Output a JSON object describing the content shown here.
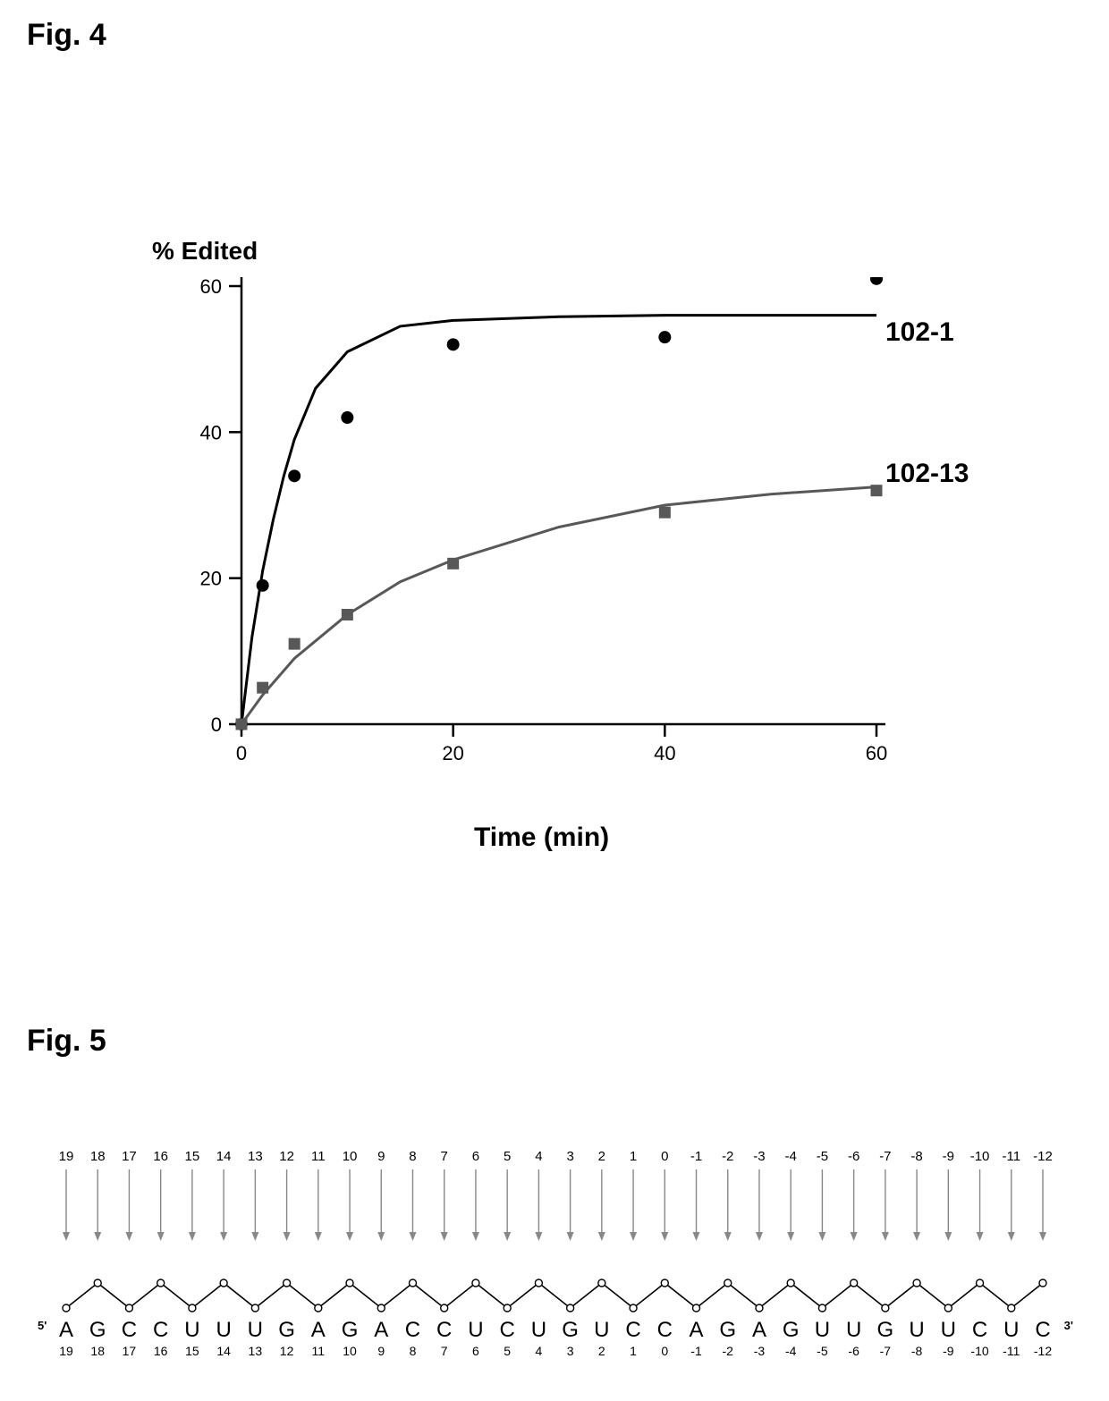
{
  "fig4": {
    "label": "Fig. 4",
    "chart": {
      "type": "line_scatter",
      "ylabel": "% Edited",
      "xlabel": "Time (min)",
      "xlim": [
        0,
        60
      ],
      "ylim": [
        0,
        60
      ],
      "xticks": [
        0,
        20,
        40,
        60
      ],
      "yticks": [
        0,
        20,
        40,
        60
      ],
      "tick_fontsize": 22,
      "label_fontsize": 29,
      "axis_color": "#000000",
      "axis_width": 2.5,
      "background": "#ffffff",
      "series": [
        {
          "name": "102-1",
          "label": "102-1",
          "marker": "circle",
          "marker_size": 14,
          "color": "#000000",
          "line_width": 3,
          "points": [
            {
              "x": 0,
              "y": 0
            },
            {
              "x": 2,
              "y": 19
            },
            {
              "x": 5,
              "y": 34
            },
            {
              "x": 10,
              "y": 42
            },
            {
              "x": 20,
              "y": 52
            },
            {
              "x": 40,
              "y": 53
            },
            {
              "x": 60,
              "y": 61
            }
          ],
          "fit_curve": [
            {
              "x": 0,
              "y": 0
            },
            {
              "x": 1,
              "y": 12
            },
            {
              "x": 2,
              "y": 21
            },
            {
              "x": 3,
              "y": 28
            },
            {
              "x": 4,
              "y": 34
            },
            {
              "x": 5,
              "y": 39
            },
            {
              "x": 7,
              "y": 46
            },
            {
              "x": 10,
              "y": 51
            },
            {
              "x": 15,
              "y": 54.5
            },
            {
              "x": 20,
              "y": 55.3
            },
            {
              "x": 30,
              "y": 55.8
            },
            {
              "x": 40,
              "y": 56
            },
            {
              "x": 50,
              "y": 56
            },
            {
              "x": 60,
              "y": 56
            }
          ]
        },
        {
          "name": "102-13",
          "label": "102-13",
          "marker": "square",
          "marker_size": 13,
          "color": "#585858",
          "line_width": 3,
          "points": [
            {
              "x": 0,
              "y": 0
            },
            {
              "x": 2,
              "y": 5
            },
            {
              "x": 5,
              "y": 11
            },
            {
              "x": 10,
              "y": 15
            },
            {
              "x": 20,
              "y": 22
            },
            {
              "x": 40,
              "y": 29
            },
            {
              "x": 60,
              "y": 32
            }
          ],
          "fit_curve": [
            {
              "x": 0,
              "y": 0
            },
            {
              "x": 2,
              "y": 4
            },
            {
              "x": 5,
              "y": 9
            },
            {
              "x": 10,
              "y": 15
            },
            {
              "x": 15,
              "y": 19.5
            },
            {
              "x": 20,
              "y": 22.5
            },
            {
              "x": 30,
              "y": 27
            },
            {
              "x": 40,
              "y": 30
            },
            {
              "x": 50,
              "y": 31.5
            },
            {
              "x": 60,
              "y": 32.5
            }
          ]
        }
      ]
    }
  },
  "fig5": {
    "label": "Fig. 5",
    "sequence": {
      "five_prime": "5'",
      "three_prime": "3'",
      "backbone_color": "#000000",
      "node_fill": "#ffffff",
      "node_stroke": "#000000",
      "arrow_color": "#888888",
      "positions": [
        {
          "idx": 19,
          "letter": "A"
        },
        {
          "idx": 18,
          "letter": "G"
        },
        {
          "idx": 17,
          "letter": "C"
        },
        {
          "idx": 16,
          "letter": "C"
        },
        {
          "idx": 15,
          "letter": "U"
        },
        {
          "idx": 14,
          "letter": "U"
        },
        {
          "idx": 13,
          "letter": "U"
        },
        {
          "idx": 12,
          "letter": "G"
        },
        {
          "idx": 11,
          "letter": "A"
        },
        {
          "idx": 10,
          "letter": "G"
        },
        {
          "idx": 9,
          "letter": "A"
        },
        {
          "idx": 8,
          "letter": "C"
        },
        {
          "idx": 7,
          "letter": "C"
        },
        {
          "idx": 6,
          "letter": "U"
        },
        {
          "idx": 5,
          "letter": "C"
        },
        {
          "idx": 4,
          "letter": "U"
        },
        {
          "idx": 3,
          "letter": "G"
        },
        {
          "idx": 2,
          "letter": "U"
        },
        {
          "idx": 1,
          "letter": "C"
        },
        {
          "idx": 0,
          "letter": "C"
        },
        {
          "idx": -1,
          "letter": "A"
        },
        {
          "idx": -2,
          "letter": "G"
        },
        {
          "idx": -3,
          "letter": "A"
        },
        {
          "idx": -4,
          "letter": "G"
        },
        {
          "idx": -5,
          "letter": "U"
        },
        {
          "idx": -6,
          "letter": "U"
        },
        {
          "idx": -7,
          "letter": "G"
        },
        {
          "idx": -8,
          "letter": "U"
        },
        {
          "idx": -9,
          "letter": "U"
        },
        {
          "idx": -10,
          "letter": "C"
        },
        {
          "idx": -11,
          "letter": "U"
        },
        {
          "idx": -12,
          "letter": "C"
        }
      ]
    }
  }
}
